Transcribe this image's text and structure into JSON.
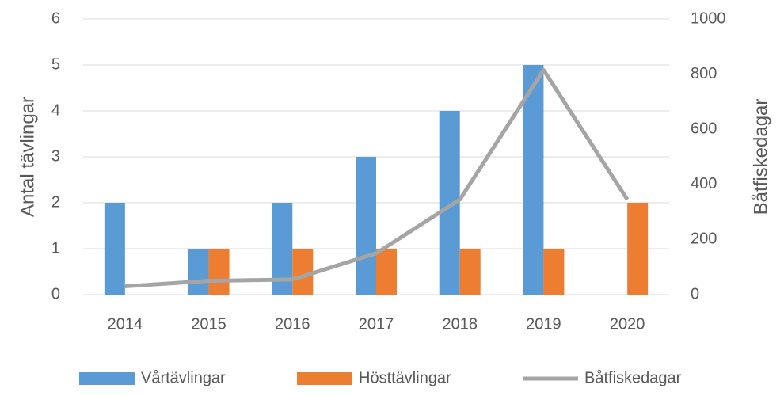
{
  "chart_data": {
    "type": "bar",
    "categories": [
      "2014",
      "2015",
      "2016",
      "2017",
      "2018",
      "2019",
      "2020"
    ],
    "series": [
      {
        "name": "Vårtävlingar",
        "color": "#5b9bd5",
        "values": [
          2,
          1,
          2,
          3,
          4,
          5,
          0
        ]
      },
      {
        "name": "Hösttävlingar",
        "color": "#ed7d31",
        "values": [
          0,
          1,
          1,
          1,
          1,
          1,
          2
        ]
      },
      {
        "name": "Båtfiskedagar",
        "color": "#a5a5a5",
        "type": "line",
        "axis": "y2",
        "values": [
          30,
          50,
          55,
          150,
          345,
          815,
          345
        ]
      }
    ],
    "ylabel": "Antal tävlingar",
    "y2label": "Båtfiskedagar",
    "ylim": [
      0,
      6
    ],
    "yticks": [
      0,
      1,
      2,
      3,
      4,
      5,
      6
    ],
    "y2lim": [
      0,
      1000
    ],
    "y2ticks": [
      0,
      200,
      400,
      600,
      800,
      1000
    ],
    "grid": true,
    "legend": "bottom"
  }
}
